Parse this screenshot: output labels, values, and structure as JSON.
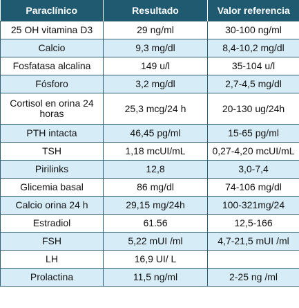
{
  "table": {
    "headers": [
      "Paraclínico",
      "Resultado",
      "Valor referencia"
    ],
    "rows": [
      [
        "25 OH vitamina D3",
        "29 ng/ml",
        "30-100 ng/ml"
      ],
      [
        "Calcio",
        "9,3 mg/dl",
        "8,4-10,2 mg/dl"
      ],
      [
        "Fosfatasa alcalina",
        "149 u/l",
        "35-104 u/l"
      ],
      [
        "Fósforo",
        "3,2 mg/dl",
        "2,7-4,5 mg/dl"
      ],
      [
        "Cortisol en orina 24 horas",
        "25,3 mcg/24 h",
        "20-130 ug/24h"
      ],
      [
        "PTH intacta",
        "46,45 pg/ml",
        "15-65 pg/ml"
      ],
      [
        "TSH",
        "1,18 mcUI/mL",
        "0,27-4,20 mcUI/mL"
      ],
      [
        "Pirilinks",
        "12,8",
        "3,0-7,4"
      ],
      [
        "Glicemia basal",
        "86 mg/dl",
        "74-106 mg/dl"
      ],
      [
        "Calcio orina 24 h",
        "29,15 mg/24h",
        "100-321mg/24"
      ],
      [
        "Estradiol",
        "61.56",
        "12,5-166"
      ],
      [
        "FSH",
        "5,22 mUI /ml",
        "4,7-21,5 mUI /ml"
      ],
      [
        "LH",
        "16,9 UI/ L",
        ""
      ],
      [
        "Prolactina",
        "11,5 ng/ml",
        "2-25 ng /ml"
      ]
    ]
  },
  "colors": {
    "header_bg": "#1f5a71",
    "header_text": "#ffffff",
    "row_alt_bg": "#d6ecf6",
    "border": "#2e5f75"
  }
}
